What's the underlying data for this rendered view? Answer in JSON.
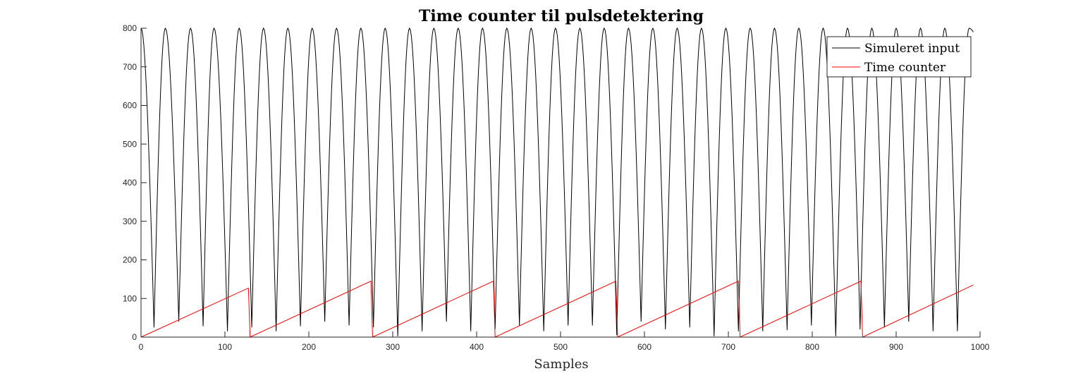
{
  "chart_data": {
    "type": "line",
    "title": "Time counter til pulsdetektering",
    "xlabel": "Samples",
    "ylabel": "",
    "xlim": [
      0,
      1000
    ],
    "ylim": [
      0,
      800
    ],
    "x_ticks": [
      "0",
      "100",
      "200",
      "300",
      "400",
      "500",
      "600",
      "700",
      "800",
      "900",
      "1000"
    ],
    "y_ticks": [
      "0",
      "100",
      "200",
      "300",
      "400",
      "500",
      "600",
      "700",
      "800"
    ],
    "grid": false,
    "legend_position": "top-right",
    "series": [
      {
        "name": "Simuleret input",
        "color": "#000000",
        "x": [
          0,
          15.5,
          29,
          45,
          59,
          74,
          87,
          103,
          117,
          132,
          146,
          161,
          175,
          190,
          204,
          219,
          233,
          248,
          262,
          277,
          291,
          306,
          320,
          335,
          349,
          364,
          378,
          393,
          407,
          422,
          436,
          451,
          465,
          480,
          494,
          509,
          523,
          538,
          552,
          567,
          581,
          596,
          610,
          625,
          639,
          654,
          668,
          683,
          697,
          712,
          726,
          741,
          755,
          770,
          784,
          799,
          813,
          828,
          842,
          857,
          871,
          886,
          900,
          915,
          929,
          944,
          958,
          973,
          987,
          992
        ],
        "y": [
          800,
          25,
          800,
          40,
          800,
          28,
          800,
          15,
          800,
          25,
          800,
          15,
          800,
          28,
          800,
          40,
          800,
          30,
          800,
          25,
          800,
          2,
          800,
          15,
          800,
          40,
          800,
          15,
          800,
          20,
          800,
          30,
          800,
          15,
          800,
          30,
          800,
          30,
          800,
          5,
          800,
          40,
          800,
          20,
          800,
          25,
          800,
          2,
          800,
          15,
          800,
          15,
          800,
          18,
          800,
          30,
          800,
          2,
          800,
          20,
          800,
          25,
          800,
          40,
          800,
          15,
          800,
          15,
          800,
          790
        ]
      },
      {
        "name": "Time counter",
        "color": "#ff0000",
        "x": [
          0,
          128,
          130,
          274,
          276,
          420,
          422,
          566,
          568,
          712,
          714,
          858,
          860,
          992
        ],
        "y": [
          0,
          127,
          0,
          145,
          0,
          145,
          0,
          145,
          0,
          145,
          0,
          145,
          0,
          135
        ]
      }
    ]
  }
}
